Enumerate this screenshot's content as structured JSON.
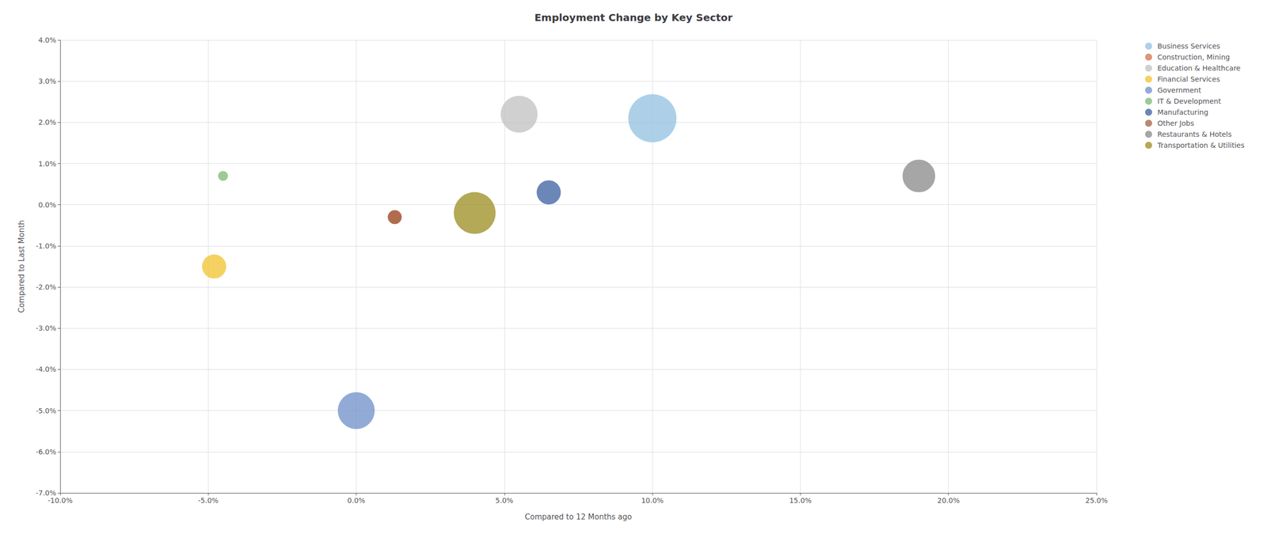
{
  "chart_data": {
    "type": "scatter",
    "title": "Employment Change by Key Sector",
    "xlabel": "Compared to 12 Months ago",
    "ylabel": "Compared to Last Month",
    "xlim": [
      -0.1,
      0.25
    ],
    "ylim": [
      -0.07,
      0.04
    ],
    "xticks": [
      {
        "value": -0.1,
        "label": "-10.0%"
      },
      {
        "value": -0.05,
        "label": "-5.0%"
      },
      {
        "value": 0.0,
        "label": "0.0%"
      },
      {
        "value": 0.05,
        "label": "5.0%"
      },
      {
        "value": 0.1,
        "label": "10.0%"
      },
      {
        "value": 0.15,
        "label": "15.0%"
      },
      {
        "value": 0.2,
        "label": "20.0%"
      },
      {
        "value": 0.25,
        "label": "25.0%"
      }
    ],
    "yticks": [
      {
        "value": -0.07,
        "label": "-7.0%"
      },
      {
        "value": -0.06,
        "label": "-6.0%"
      },
      {
        "value": -0.05,
        "label": "-5.0%"
      },
      {
        "value": -0.04,
        "label": "-4.0%"
      },
      {
        "value": -0.03,
        "label": "-3.0%"
      },
      {
        "value": -0.02,
        "label": "-2.0%"
      },
      {
        "value": -0.01,
        "label": "-1.0%"
      },
      {
        "value": 0.0,
        "label": "0.0%"
      },
      {
        "value": 0.01,
        "label": "1.0%"
      },
      {
        "value": 0.02,
        "label": "2.0%"
      },
      {
        "value": 0.03,
        "label": "3.0%"
      },
      {
        "value": 0.04,
        "label": "4.0%"
      }
    ],
    "grid": true,
    "legend": "upper right",
    "series": [
      {
        "name": "Business Services",
        "x": [
          0.1
        ],
        "y": [
          0.021
        ],
        "size": [
          4800
        ],
        "color": "#92C0E0"
      },
      {
        "name": "Construction, Mining",
        "x": [
          0.013
        ],
        "y": [
          -0.003
        ],
        "size": [
          400
        ],
        "color": "#D4724A"
      },
      {
        "name": "Education & Healthcare",
        "x": [
          0.055
        ],
        "y": [
          0.022
        ],
        "size": [
          2800
        ],
        "color": "#C0C0C0"
      },
      {
        "name": "Financial Services",
        "x": [
          -0.048
        ],
        "y": [
          -0.015
        ],
        "size": [
          1200
        ],
        "color": "#F2C12E"
      },
      {
        "name": "Government",
        "x": [
          0.0
        ],
        "y": [
          -0.05
        ],
        "size": [
          2800
        ],
        "color": "#6E8FC8"
      },
      {
        "name": "IT & Development",
        "x": [
          -0.045
        ],
        "y": [
          0.007
        ],
        "size": [
          200
        ],
        "color": "#7BB870"
      },
      {
        "name": "Manufacturing",
        "x": [
          0.065
        ],
        "y": [
          0.003
        ],
        "size": [
          1200
        ],
        "color": "#3A5FA0"
      },
      {
        "name": "Other Jobs",
        "x": [
          0.013
        ],
        "y": [
          -0.003
        ],
        "size": [
          400
        ],
        "color": "#A06040"
      },
      {
        "name": "Restaurants & Hotels",
        "x": [
          0.19
        ],
        "y": [
          0.007
        ],
        "size": [
          2200
        ],
        "color": "#888888"
      },
      {
        "name": "Transportation & Utilities",
        "x": [
          0.04
        ],
        "y": [
          -0.002
        ],
        "size": [
          3600
        ],
        "color": "#9A8C1E"
      }
    ]
  }
}
